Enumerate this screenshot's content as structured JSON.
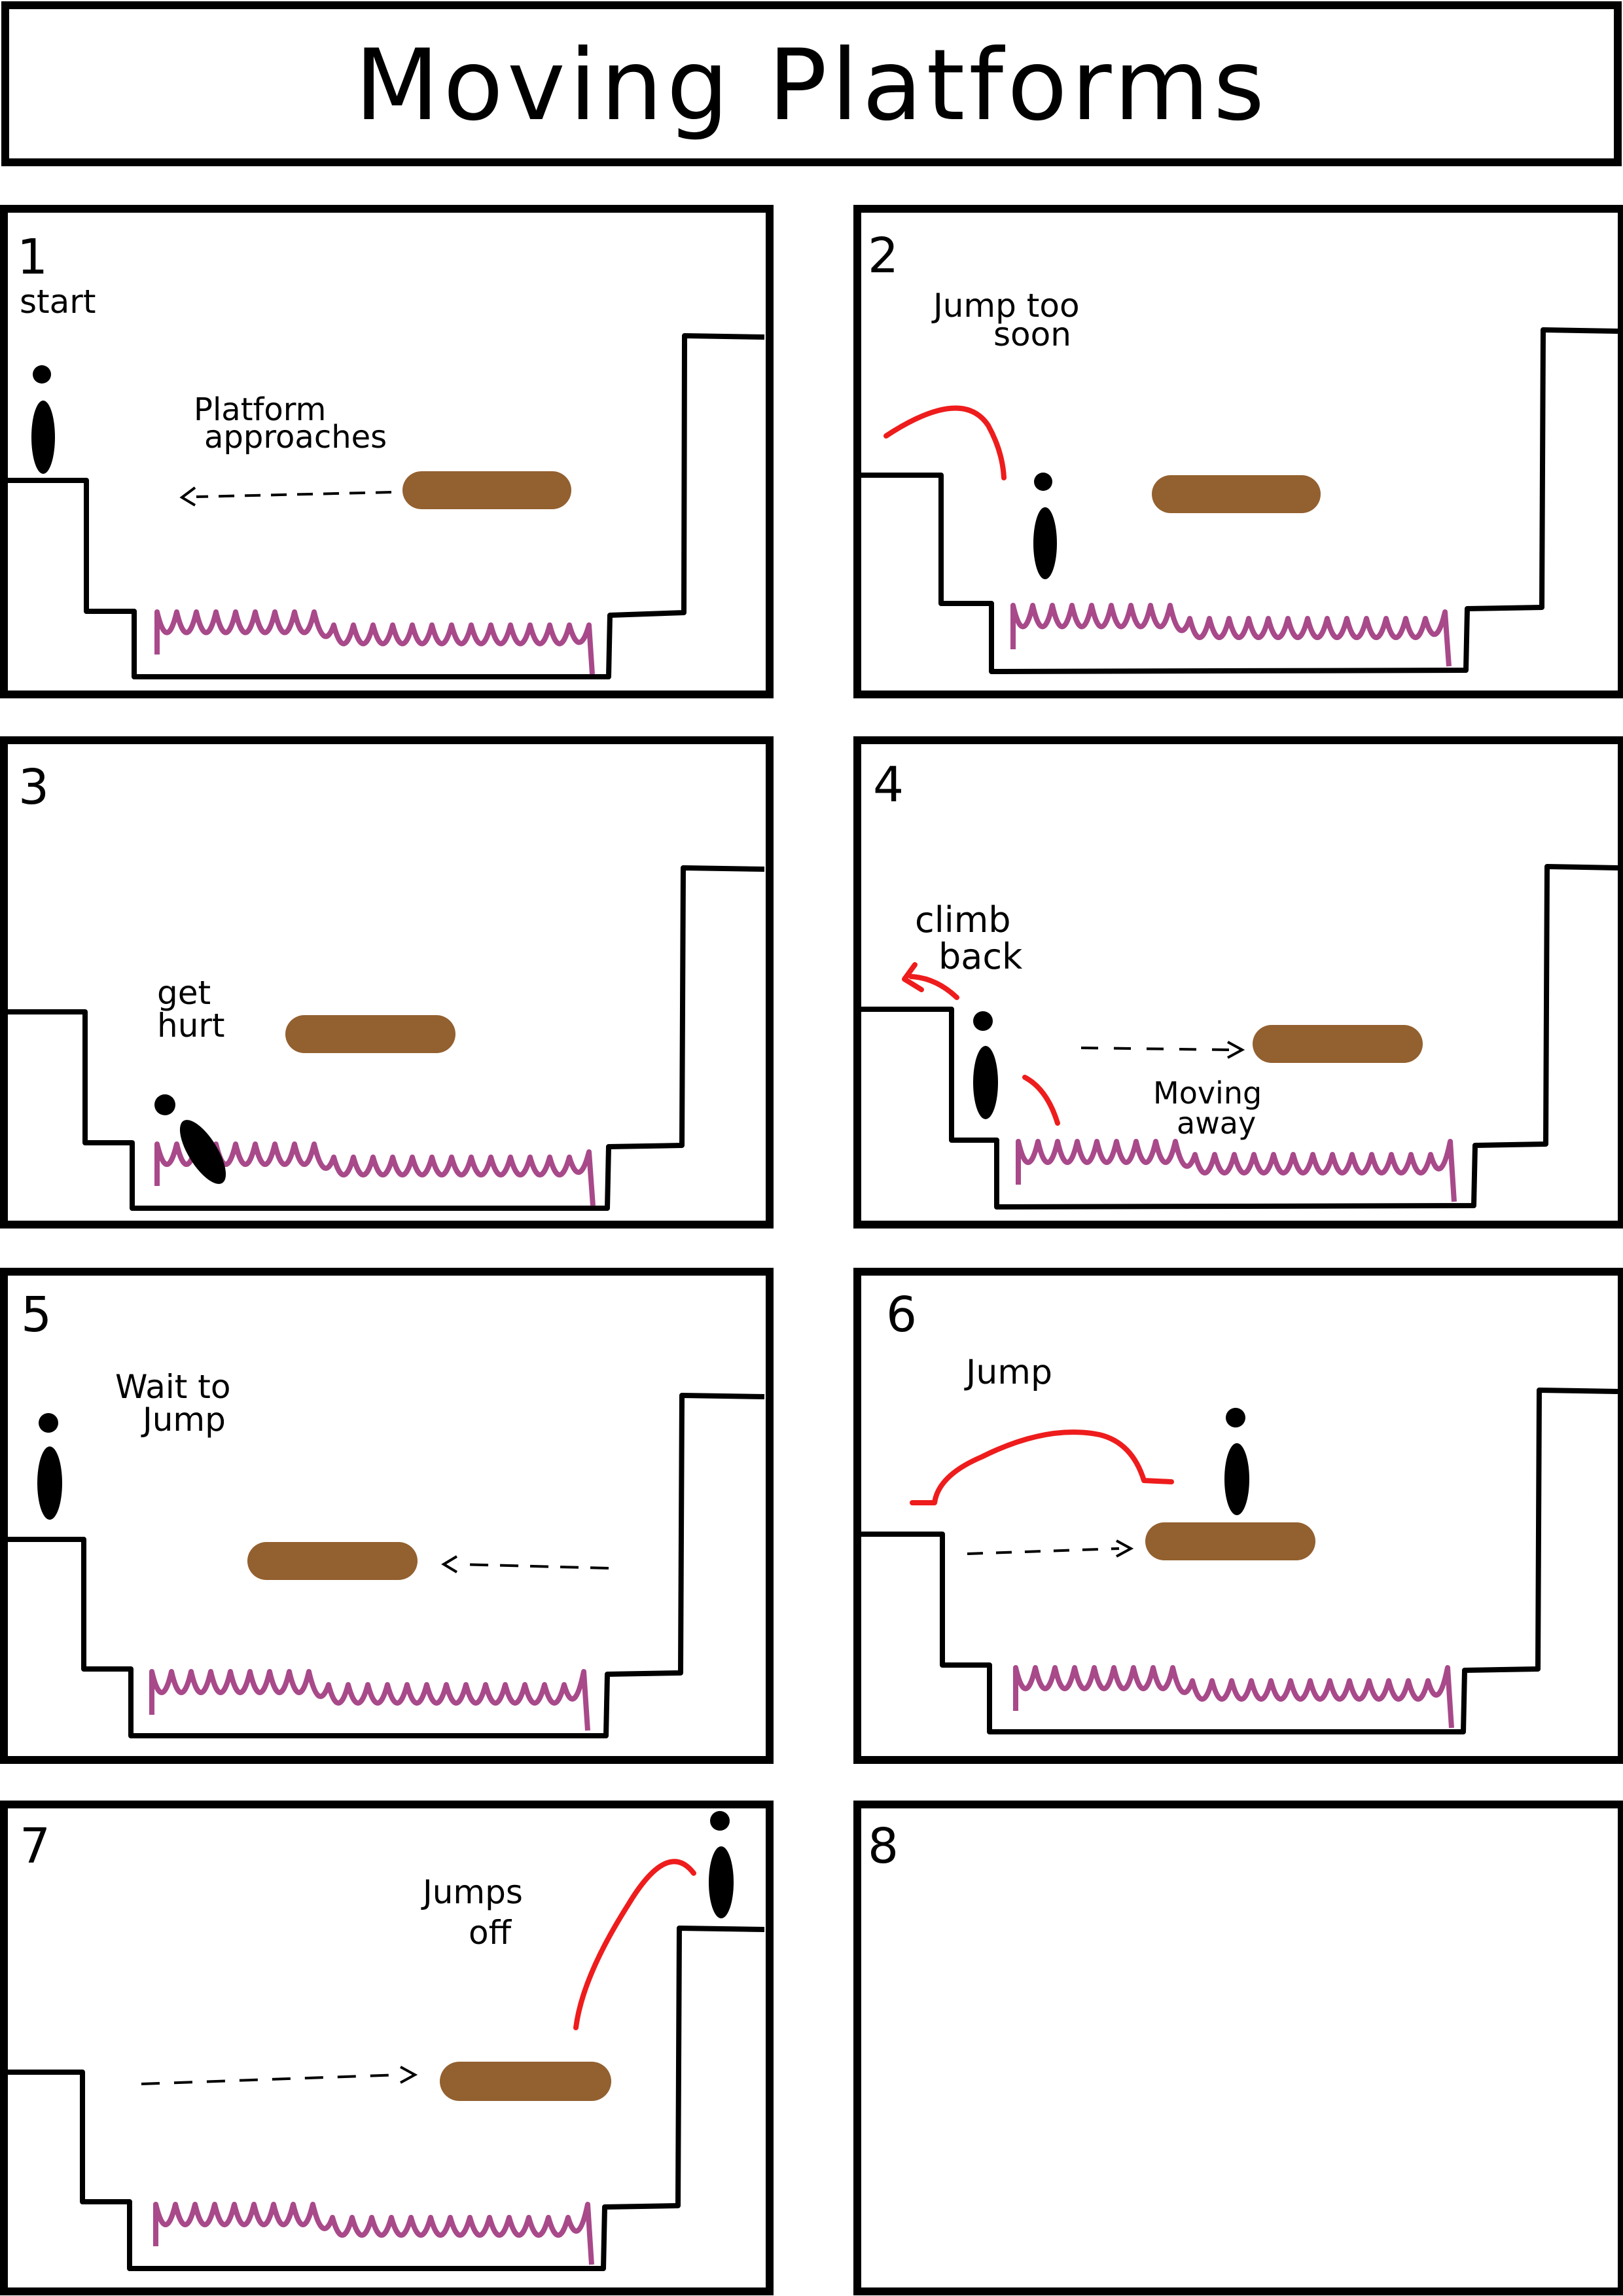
{
  "title": "Moving Platforms",
  "colors": {
    "line": "#000000",
    "platform": "#93602f",
    "spikes": "#a8498a",
    "jump_arc": "#ee1c1c",
    "character": "#000000"
  },
  "icons": {
    "character": "stick-figure-icon",
    "platform": "moving-platform",
    "hazard": "spike-pit"
  },
  "panels": [
    {
      "number": "1",
      "notes": [
        "start",
        "Platform",
        "approaches"
      ]
    },
    {
      "number": "2",
      "notes": [
        "Jump too",
        "soon"
      ]
    },
    {
      "number": "3",
      "notes": [
        "get",
        "hurt"
      ]
    },
    {
      "number": "4",
      "notes": [
        "climb",
        "back",
        "Moving",
        "away"
      ]
    },
    {
      "number": "5",
      "notes": [
        "Wait to",
        "Jump"
      ]
    },
    {
      "number": "6",
      "notes": [
        "Jump"
      ]
    },
    {
      "number": "7",
      "notes": [
        "Jumps",
        "off"
      ]
    },
    {
      "number": "8",
      "notes": []
    }
  ]
}
